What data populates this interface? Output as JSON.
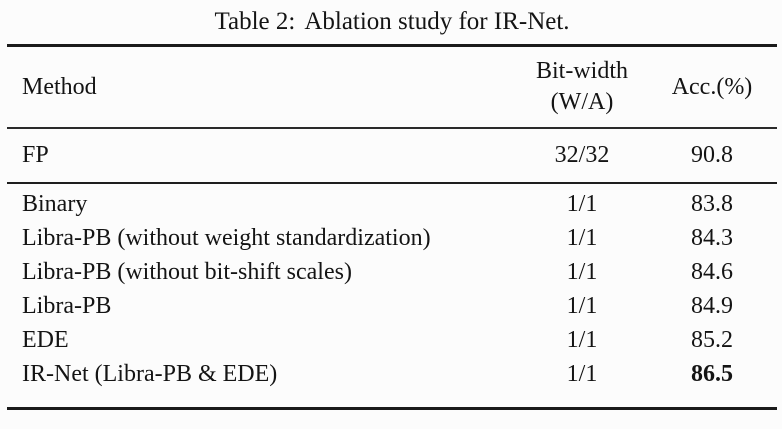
{
  "caption": {
    "label": "Table 2:",
    "text": "Ablation study for IR-Net."
  },
  "table": {
    "header": {
      "method": "Method",
      "bitwidth_line1": "Bit-width",
      "bitwidth_line2": "(W/A)",
      "acc": "Acc.(%)"
    },
    "fp_row": {
      "method": "FP",
      "bitwidth": "32/32",
      "acc": "90.8"
    },
    "rows": [
      {
        "method": "Binary",
        "bitwidth": "1/1",
        "acc": "83.8"
      },
      {
        "method": "Libra-PB (without weight standardization)",
        "bitwidth": "1/1",
        "acc": "84.3"
      },
      {
        "method": "Libra-PB (without bit-shift scales)",
        "bitwidth": "1/1",
        "acc": "84.6"
      },
      {
        "method": "Libra-PB",
        "bitwidth": "1/1",
        "acc": "84.9"
      },
      {
        "method": "EDE",
        "bitwidth": "1/1",
        "acc": "85.2"
      },
      {
        "method": "IR-Net (Libra-PB & EDE)",
        "bitwidth": "1/1",
        "acc": "86.5"
      }
    ]
  },
  "colors": {
    "text": "#141414",
    "rule": "#1b1b1b",
    "background": "#fcfcfc"
  }
}
